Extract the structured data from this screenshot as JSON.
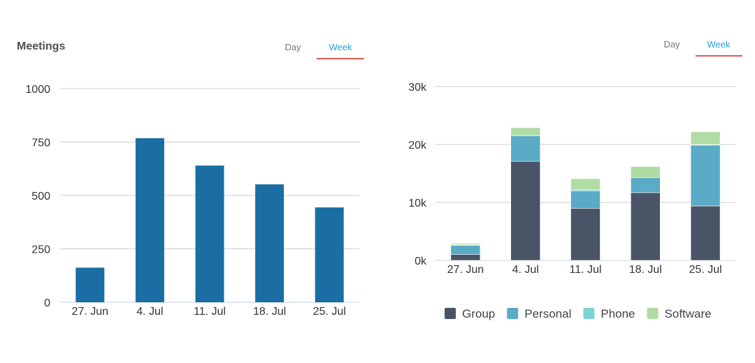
{
  "left_panel": {
    "title": "Meetings",
    "tabs": [
      {
        "label": "Day"
      },
      {
        "label": "Week",
        "active": true
      }
    ]
  },
  "right_panel": {
    "tabs": [
      {
        "label": "Day"
      },
      {
        "label": "Week",
        "active": true
      }
    ]
  },
  "colors": {
    "bar": "#1a6ea3",
    "tab_active": "#2a9fd6",
    "tab_underline": "#e05a57",
    "grid": "#cccccc",
    "Group": "#4a5467",
    "Personal": "#59abc6",
    "Phone": "#7fd3d2",
    "Software": "#b0dca4"
  },
  "chart_data": [
    {
      "type": "bar",
      "title": "Meetings",
      "categories": [
        "27. Jun",
        "4. Jul",
        "11. Jul",
        "18. Jul",
        "25. Jul"
      ],
      "values": [
        162,
        768,
        640,
        552,
        444
      ],
      "ylim": [
        0,
        1000
      ],
      "yticks": [
        "0",
        "250",
        "500",
        "750",
        "1000"
      ],
      "ytick_values": [
        0,
        250,
        500,
        750,
        1000
      ],
      "grid": true
    },
    {
      "type": "bar",
      "stacked": true,
      "categories": [
        "27. Jun",
        "4. Jul",
        "11. Jul",
        "18. Jul",
        "25. Jul"
      ],
      "series": [
        {
          "name": "Group",
          "values": [
            1000,
            17100,
            9000,
            11700,
            9400
          ]
        },
        {
          "name": "Personal",
          "values": [
            1600,
            4400,
            3000,
            2600,
            10500
          ]
        },
        {
          "name": "Phone",
          "values": [
            100,
            0,
            200,
            0,
            100
          ]
        },
        {
          "name": "Software",
          "values": [
            200,
            1400,
            1900,
            1900,
            2200
          ]
        }
      ],
      "ylim": [
        0,
        30000
      ],
      "yticks": [
        "0k",
        "10k",
        "20k",
        "30k"
      ],
      "ytick_values": [
        0,
        10000,
        20000,
        30000
      ],
      "legend_position": "bottom",
      "grid": true
    }
  ]
}
